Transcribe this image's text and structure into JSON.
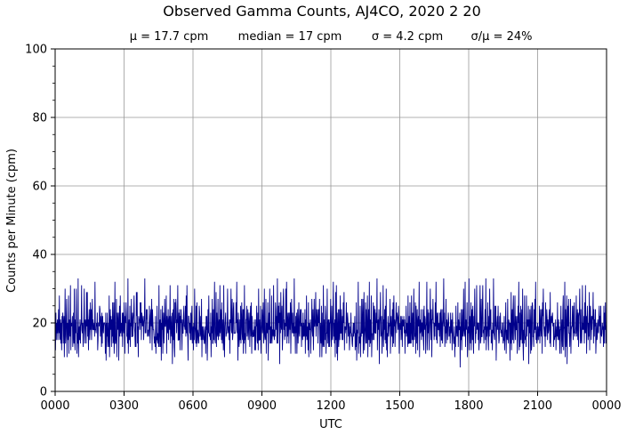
{
  "chart_data": {
    "type": "line",
    "title": "Observed Gamma Counts, AJ4CO, 2020 2 20",
    "subtitle_stats": [
      "μ = 17.7 cpm",
      "median = 17 cpm",
      "σ = 4.2 cpm",
      "σ/μ = 24%"
    ],
    "xlabel": "UTC",
    "ylabel": "Counts per Minute (cpm)",
    "x_tick_labels": [
      "0000",
      "0300",
      "0600",
      "0900",
      "1200",
      "1500",
      "1800",
      "2100",
      "0000"
    ],
    "y_tick_labels": [
      "0",
      "20",
      "40",
      "60",
      "80",
      "100"
    ],
    "ylim": [
      0,
      100
    ],
    "xlim_minutes": [
      0,
      1440
    ],
    "grid": true,
    "series": [
      {
        "color": "#00008b",
        "sampling": "one value per minute, 1440 samples",
        "stats": {
          "mean": 17.7,
          "median": 17,
          "std": 4.2,
          "min": 7,
          "max": 33
        },
        "sampled_values": [
          18,
          14,
          22,
          11,
          19,
          16,
          24,
          12,
          17,
          21,
          15,
          29,
          13,
          18,
          20,
          16,
          22,
          10,
          19,
          17,
          26,
          14,
          18,
          23,
          12,
          20,
          31,
          15,
          17,
          19,
          30,
          13,
          21,
          16,
          18,
          24,
          11,
          19,
          22,
          17,
          31,
          14,
          20,
          16,
          18,
          25,
          12,
          19,
          21,
          15,
          28,
          17,
          13,
          22,
          18,
          26,
          20,
          15,
          19,
          17,
          32,
          14,
          18,
          21,
          16,
          23,
          12,
          19,
          20,
          28,
          17,
          15,
          24,
          13,
          18,
          22,
          29,
          16,
          19,
          17,
          21,
          14,
          26,
          18,
          33,
          15,
          20,
          13,
          19,
          23,
          17,
          16,
          22,
          18,
          26,
          14,
          20,
          24,
          17,
          19,
          21,
          15,
          23,
          18,
          32,
          16,
          20,
          14,
          22,
          17,
          24,
          13,
          19,
          21,
          18,
          16,
          23,
          20,
          15,
          19,
          22,
          17,
          25,
          14,
          21,
          18,
          16,
          20,
          19,
          17
        ]
      }
    ]
  }
}
